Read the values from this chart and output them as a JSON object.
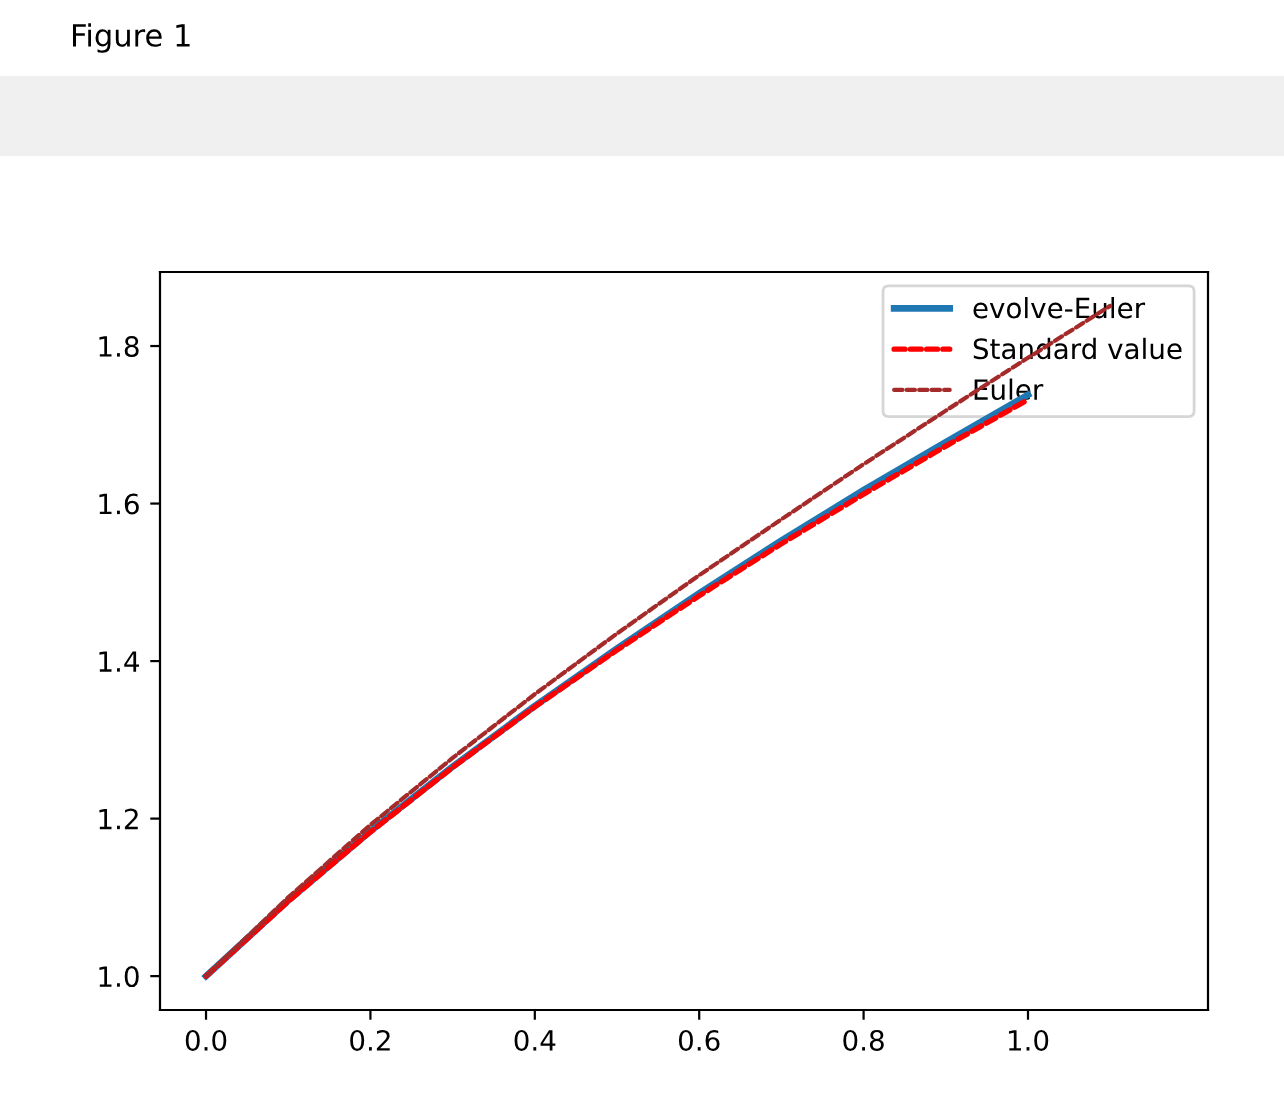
{
  "chart_data": {
    "type": "line",
    "x": [
      0,
      0.1,
      0.2,
      0.3,
      0.4,
      0.5,
      0.6,
      0.7,
      0.8,
      0.9,
      1.0
    ],
    "series": [
      {
        "name": "evolve-Euler",
        "color": "#1f77b4",
        "line_style": "solid",
        "values": [
          1.0,
          1.096,
          1.184,
          1.266,
          1.343,
          1.416,
          1.486,
          1.553,
          1.617,
          1.678,
          1.738
        ]
      },
      {
        "name": "Standard value",
        "color": "#ff0000",
        "line_style": "dashed",
        "values": [
          1.0,
          1.095,
          1.183,
          1.265,
          1.342,
          1.414,
          1.483,
          1.549,
          1.612,
          1.673,
          1.732
        ]
      },
      {
        "name": "Euler",
        "color": "#a52a2a",
        "line_style": "dashed",
        "x": [
          0,
          0.1,
          0.2,
          0.3,
          0.4,
          0.5,
          0.6,
          0.7,
          0.8,
          0.9,
          1.0,
          1.1
        ],
        "values": [
          1.0,
          1.1,
          1.192,
          1.277,
          1.358,
          1.435,
          1.509,
          1.58,
          1.65,
          1.718,
          1.785,
          1.851
        ]
      }
    ],
    "xlim": [
      -0.056,
      1.219
    ],
    "xticks": [
      {
        "value": 0,
        "label": "0.0"
      },
      0.2,
      0.4,
      0.6,
      0.8,
      {
        "value": 1,
        "label": "1.0"
      }
    ],
    "ylim": [
      0.957,
      1.894
    ],
    "yticks": [
      {
        "value": 1,
        "label": "1.0"
      },
      1.2,
      1.4,
      1.6,
      1.8
    ],
    "legend": "top right",
    "grid": false,
    "marker": "none",
    "annotations": [
      "Figure 1"
    ]
  }
}
